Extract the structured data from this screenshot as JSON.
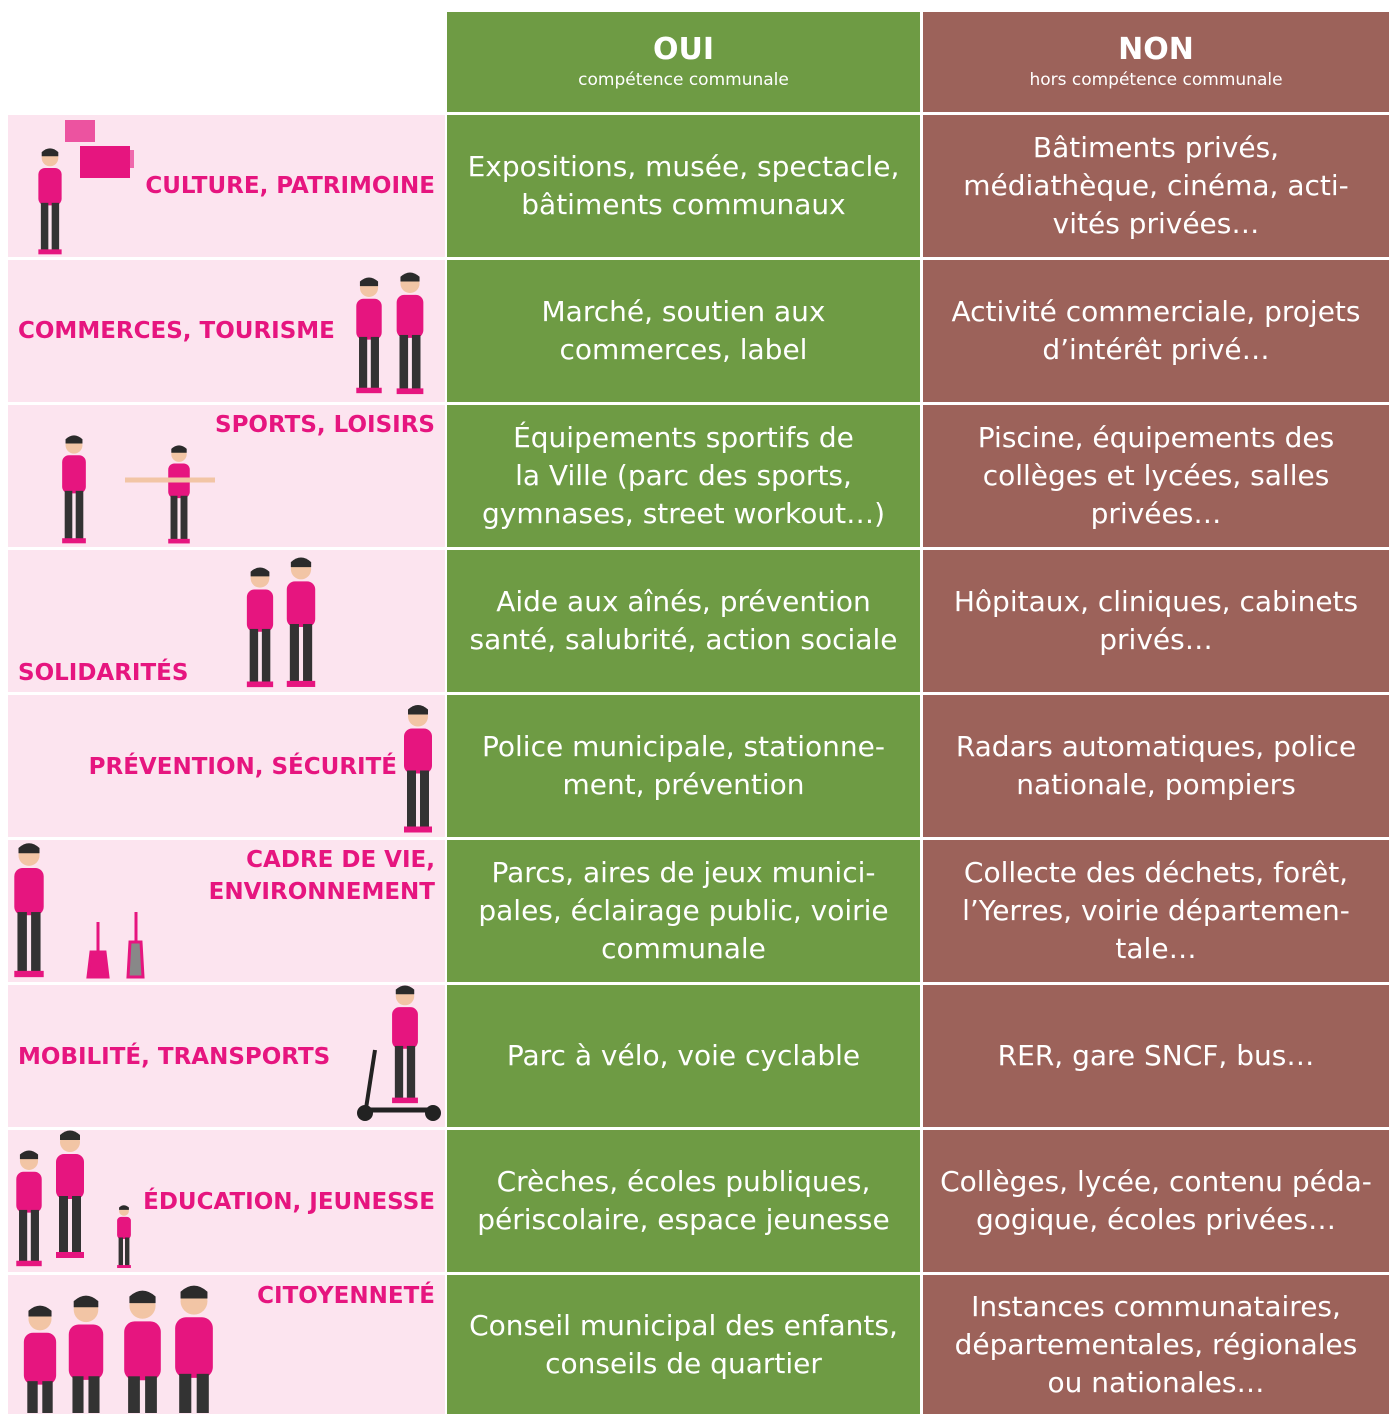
{
  "header": {
    "oui": {
      "title": "OUI",
      "subtitle": "compétence communale"
    },
    "non": {
      "title": "NON",
      "subtitle": "hors compétence communale"
    }
  },
  "table": {
    "rows": [
      {
        "label": [
          "CULTURE, PATRIMOINE"
        ],
        "oui": [
          "Expositions, musée, spectacle,",
          "bâtiments communaux"
        ],
        "non": [
          "Bâtiments privés,",
          "médiathèque, cinéma, acti-",
          "vités privées…"
        ]
      },
      {
        "label": [
          "COMMERCES, TOURISME"
        ],
        "oui": [
          "Marché, soutien aux",
          "commerces, label"
        ],
        "non": [
          "Activité commerciale, projets",
          "d’intérêt privé…"
        ]
      },
      {
        "label": [
          "SPORTS, LOISIRS"
        ],
        "oui": [
          "Équipements sportifs de",
          "la Ville (parc des sports,",
          "gymnases, street workout…)"
        ],
        "non": [
          "Piscine, équipements des",
          "collèges et lycées, salles",
          "privées…"
        ]
      },
      {
        "label": [
          "SOLIDARITÉS"
        ],
        "oui": [
          "Aide aux aînés, prévention",
          "santé, salubrité, action sociale"
        ],
        "non": [
          "Hôpitaux, cliniques, cabinets",
          "privés…"
        ]
      },
      {
        "label": [
          "PRÉVENTION, SÉCURITÉ"
        ],
        "oui": [
          "Police municipale, stationne-",
          "ment, prévention"
        ],
        "non": [
          "Radars automatiques, police",
          "nationale, pompiers"
        ]
      },
      {
        "label": [
          "CADRE DE VIE,",
          "ENVIRONNEMENT"
        ],
        "oui": [
          "Parcs, aires de jeux munici-",
          "pales, éclairage public, voirie",
          "communale"
        ],
        "non": [
          "Collecte des déchets, forêt,",
          "l’Yerres, voirie départemen-",
          "tale…"
        ]
      },
      {
        "label": [
          "MOBILITÉ, TRANSPORTS"
        ],
        "oui": [
          "Parc à vélo, voie cyclable"
        ],
        "non": [
          "RER, gare SNCF, bus…"
        ]
      },
      {
        "label": [
          "ÉDUCATION, JEUNESSE"
        ],
        "oui": [
          "Crèches, écoles publiques,",
          "périscolaire, espace jeunesse"
        ],
        "non": [
          "Collèges, lycée, contenu péda-",
          "gogique, écoles privées…"
        ]
      },
      {
        "label": [
          "CITOYENNETÉ"
        ],
        "oui": [
          "Conseil municipal des enfants,",
          "conseils de quartier"
        ],
        "non": [
          "Instances communataires,",
          "départementales, régionales",
          "ou nationales…"
        ]
      }
    ]
  }
}
